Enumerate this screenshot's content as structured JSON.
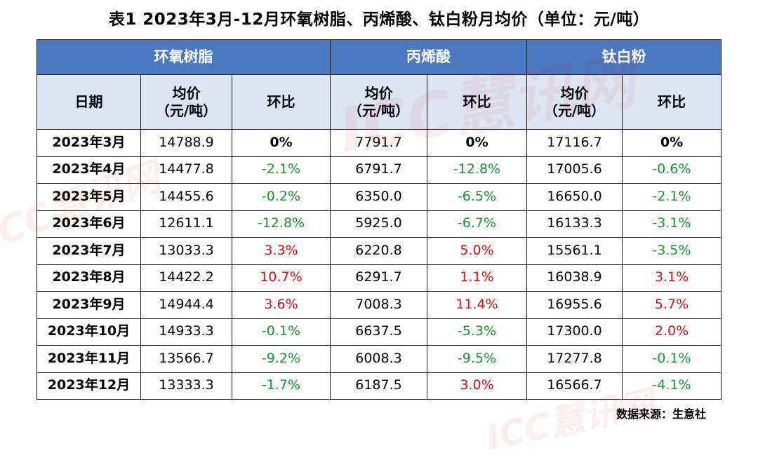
{
  "title": "表1 2023年3月-12月环氧树脂、丙烯酸、钛白粉月均价（单位：元/吨）",
  "watermark": "ICC慧讯网",
  "source": "数据来源：生意社",
  "headers": {
    "date": "日期",
    "price_line1": "均价",
    "price_line2": "（元/吨）",
    "mom": "环比"
  },
  "products": [
    "环氧树脂",
    "丙烯酸",
    "钛白粉"
  ],
  "colors": {
    "header_blue": "#4a78c1",
    "subheader": "#dde5f3",
    "rise": "#d91010",
    "fall": "#149a2c"
  },
  "rows": [
    {
      "month": "2023年3月",
      "cells": [
        {
          "price": "14788.9",
          "mom": "0%",
          "dir": "zero"
        },
        {
          "price": "7791.7",
          "mom": "0%",
          "dir": "zero"
        },
        {
          "price": "17116.7",
          "mom": "0%",
          "dir": "zero"
        }
      ]
    },
    {
      "month": "2023年4月",
      "cells": [
        {
          "price": "14477.8",
          "mom": "-2.1%",
          "dir": "neg"
        },
        {
          "price": "6791.7",
          "mom": "-12.8%",
          "dir": "neg"
        },
        {
          "price": "17005.6",
          "mom": "-0.6%",
          "dir": "neg"
        }
      ]
    },
    {
      "month": "2023年5月",
      "cells": [
        {
          "price": "14455.6",
          "mom": "-0.2%",
          "dir": "neg"
        },
        {
          "price": "6350.0",
          "mom": "-6.5%",
          "dir": "neg"
        },
        {
          "price": "16650.0",
          "mom": "-2.1%",
          "dir": "neg"
        }
      ]
    },
    {
      "month": "2023年6月",
      "cells": [
        {
          "price": "12611.1",
          "mom": "-12.8%",
          "dir": "neg"
        },
        {
          "price": "5925.0",
          "mom": "-6.7%",
          "dir": "neg"
        },
        {
          "price": "16133.3",
          "mom": "-3.1%",
          "dir": "neg"
        }
      ]
    },
    {
      "month": "2023年7月",
      "cells": [
        {
          "price": "13033.3",
          "mom": "3.3%",
          "dir": "pos"
        },
        {
          "price": "6220.8",
          "mom": "5.0%",
          "dir": "pos"
        },
        {
          "price": "15561.1",
          "mom": "-3.5%",
          "dir": "neg"
        }
      ]
    },
    {
      "month": "2023年8月",
      "cells": [
        {
          "price": "14422.2",
          "mom": "10.7%",
          "dir": "pos"
        },
        {
          "price": "6291.7",
          "mom": "1.1%",
          "dir": "pos"
        },
        {
          "price": "16038.9",
          "mom": "3.1%",
          "dir": "pos"
        }
      ]
    },
    {
      "month": "2023年9月",
      "cells": [
        {
          "price": "14944.4",
          "mom": "3.6%",
          "dir": "pos"
        },
        {
          "price": "7008.3",
          "mom": "11.4%",
          "dir": "pos"
        },
        {
          "price": "16955.6",
          "mom": "5.7%",
          "dir": "pos"
        }
      ]
    },
    {
      "month": "2023年10月",
      "cells": [
        {
          "price": "14933.3",
          "mom": "-0.1%",
          "dir": "neg"
        },
        {
          "price": "6637.5",
          "mom": "-5.3%",
          "dir": "neg"
        },
        {
          "price": "17300.0",
          "mom": "2.0%",
          "dir": "pos"
        }
      ]
    },
    {
      "month": "2023年11月",
      "cells": [
        {
          "price": "13566.7",
          "mom": "-9.2%",
          "dir": "neg"
        },
        {
          "price": "6008.3",
          "mom": "-9.5%",
          "dir": "neg"
        },
        {
          "price": "17277.8",
          "mom": "-0.1%",
          "dir": "neg"
        }
      ]
    },
    {
      "month": "2023年12月",
      "cells": [
        {
          "price": "13333.3",
          "mom": "-1.7%",
          "dir": "neg"
        },
        {
          "price": "6187.5",
          "mom": "3.0%",
          "dir": "pos"
        },
        {
          "price": "16566.7",
          "mom": "-4.1%",
          "dir": "neg"
        }
      ]
    }
  ]
}
